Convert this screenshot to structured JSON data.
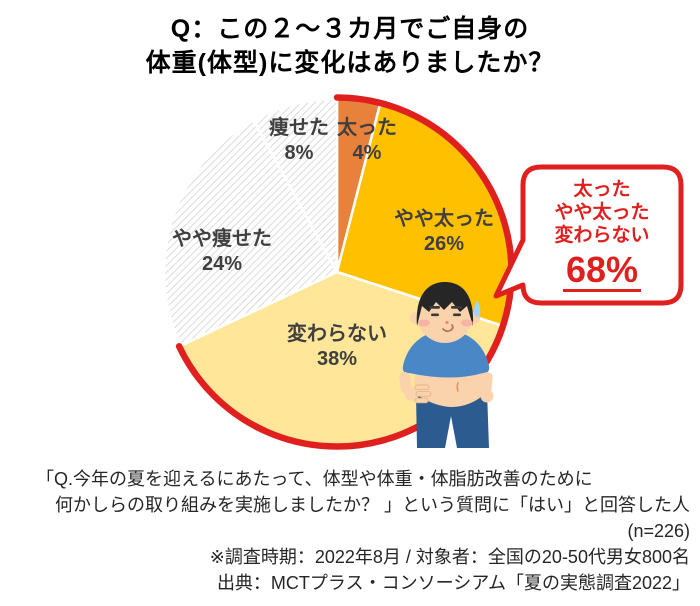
{
  "title": {
    "line1": "Q：この２～３カ月でご自身の",
    "line2": "体重(体型)に変化はありましたか？"
  },
  "chart_data": {
    "type": "pie",
    "title": "Q：この２～３カ月でご自身の体重(体型)に変化はありましたか？",
    "start_angle_deg": 0,
    "direction": "clockwise",
    "slices": [
      {
        "name": "gained",
        "label": "太った",
        "value": 4,
        "pct_label": "4%",
        "color": "#e8813b",
        "pattern": "solid"
      },
      {
        "name": "slightly-gained",
        "label": "やや太った",
        "value": 26,
        "pct_label": "26%",
        "color": "#ffc000",
        "pattern": "solid"
      },
      {
        "name": "unchanged",
        "label": "変わらない",
        "value": 38,
        "pct_label": "38%",
        "color": "#ffe699",
        "pattern": "solid"
      },
      {
        "name": "slightly-lost",
        "label": "やや痩せた",
        "value": 24,
        "pct_label": "24%",
        "color": "#ffffff",
        "pattern": "diagonal-hatch"
      },
      {
        "name": "lost",
        "label": "痩せた",
        "value": 8,
        "pct_label": "8%",
        "color": "#ffffff",
        "pattern": "diagonal-hatch"
      }
    ],
    "highlight": {
      "labels": [
        "太った",
        "やや太った",
        "変わらない"
      ],
      "total_pct": 68,
      "total_label": "68%",
      "outline_color": "#e01f1f"
    },
    "legend": "none",
    "labels_on_slices": true
  },
  "callout": {
    "lines": [
      "太った",
      "やや太った",
      "変わらない"
    ],
    "value": "68%",
    "text_color": "#e01f1f",
    "border_color": "#e01f1f"
  },
  "illustration": {
    "name": "chubby-man-touching-belly"
  },
  "footer": {
    "lines": [
      "「Q.今年の夏を迎えるにあたって、体型や体重・体脂肪改善のために",
      "何かしらの取り組みを実施しましたか？ 」という質問に「はい」と回答した人",
      "(n=226)",
      "※調査時期：2022年8月 / 対象者：全国の20-50代男女800名",
      "出典：MCTプラス・コンソーシアム「夏の実態調査2022」"
    ]
  },
  "colors": {
    "accent_red": "#e01f1f",
    "label_gray": "#3f3f3f",
    "hatch_line": "#cccccc"
  }
}
